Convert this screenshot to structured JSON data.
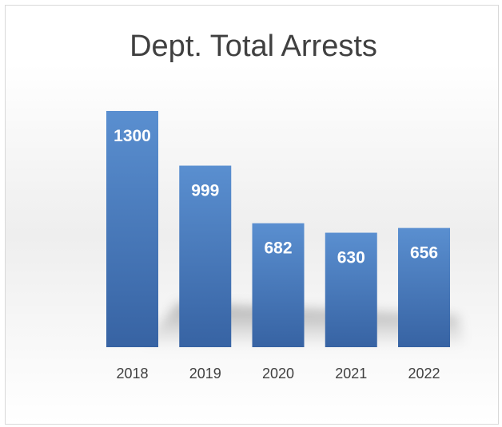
{
  "chart_data": {
    "type": "bar",
    "title": "Dept. Total Arrests",
    "categories": [
      "2018",
      "2019",
      "2020",
      "2021",
      "2022"
    ],
    "values": [
      1300,
      999,
      682,
      630,
      656
    ],
    "data_labels": [
      "1300",
      "999",
      "682",
      "630",
      "656"
    ],
    "ylim": [
      0,
      1300
    ],
    "grid": false,
    "legend": "none",
    "colors": {
      "bar_top": "#5a8fd0",
      "bar_bottom": "#3763a3",
      "label": "#ffffff",
      "tick": "#404040",
      "title": "#404040"
    }
  }
}
